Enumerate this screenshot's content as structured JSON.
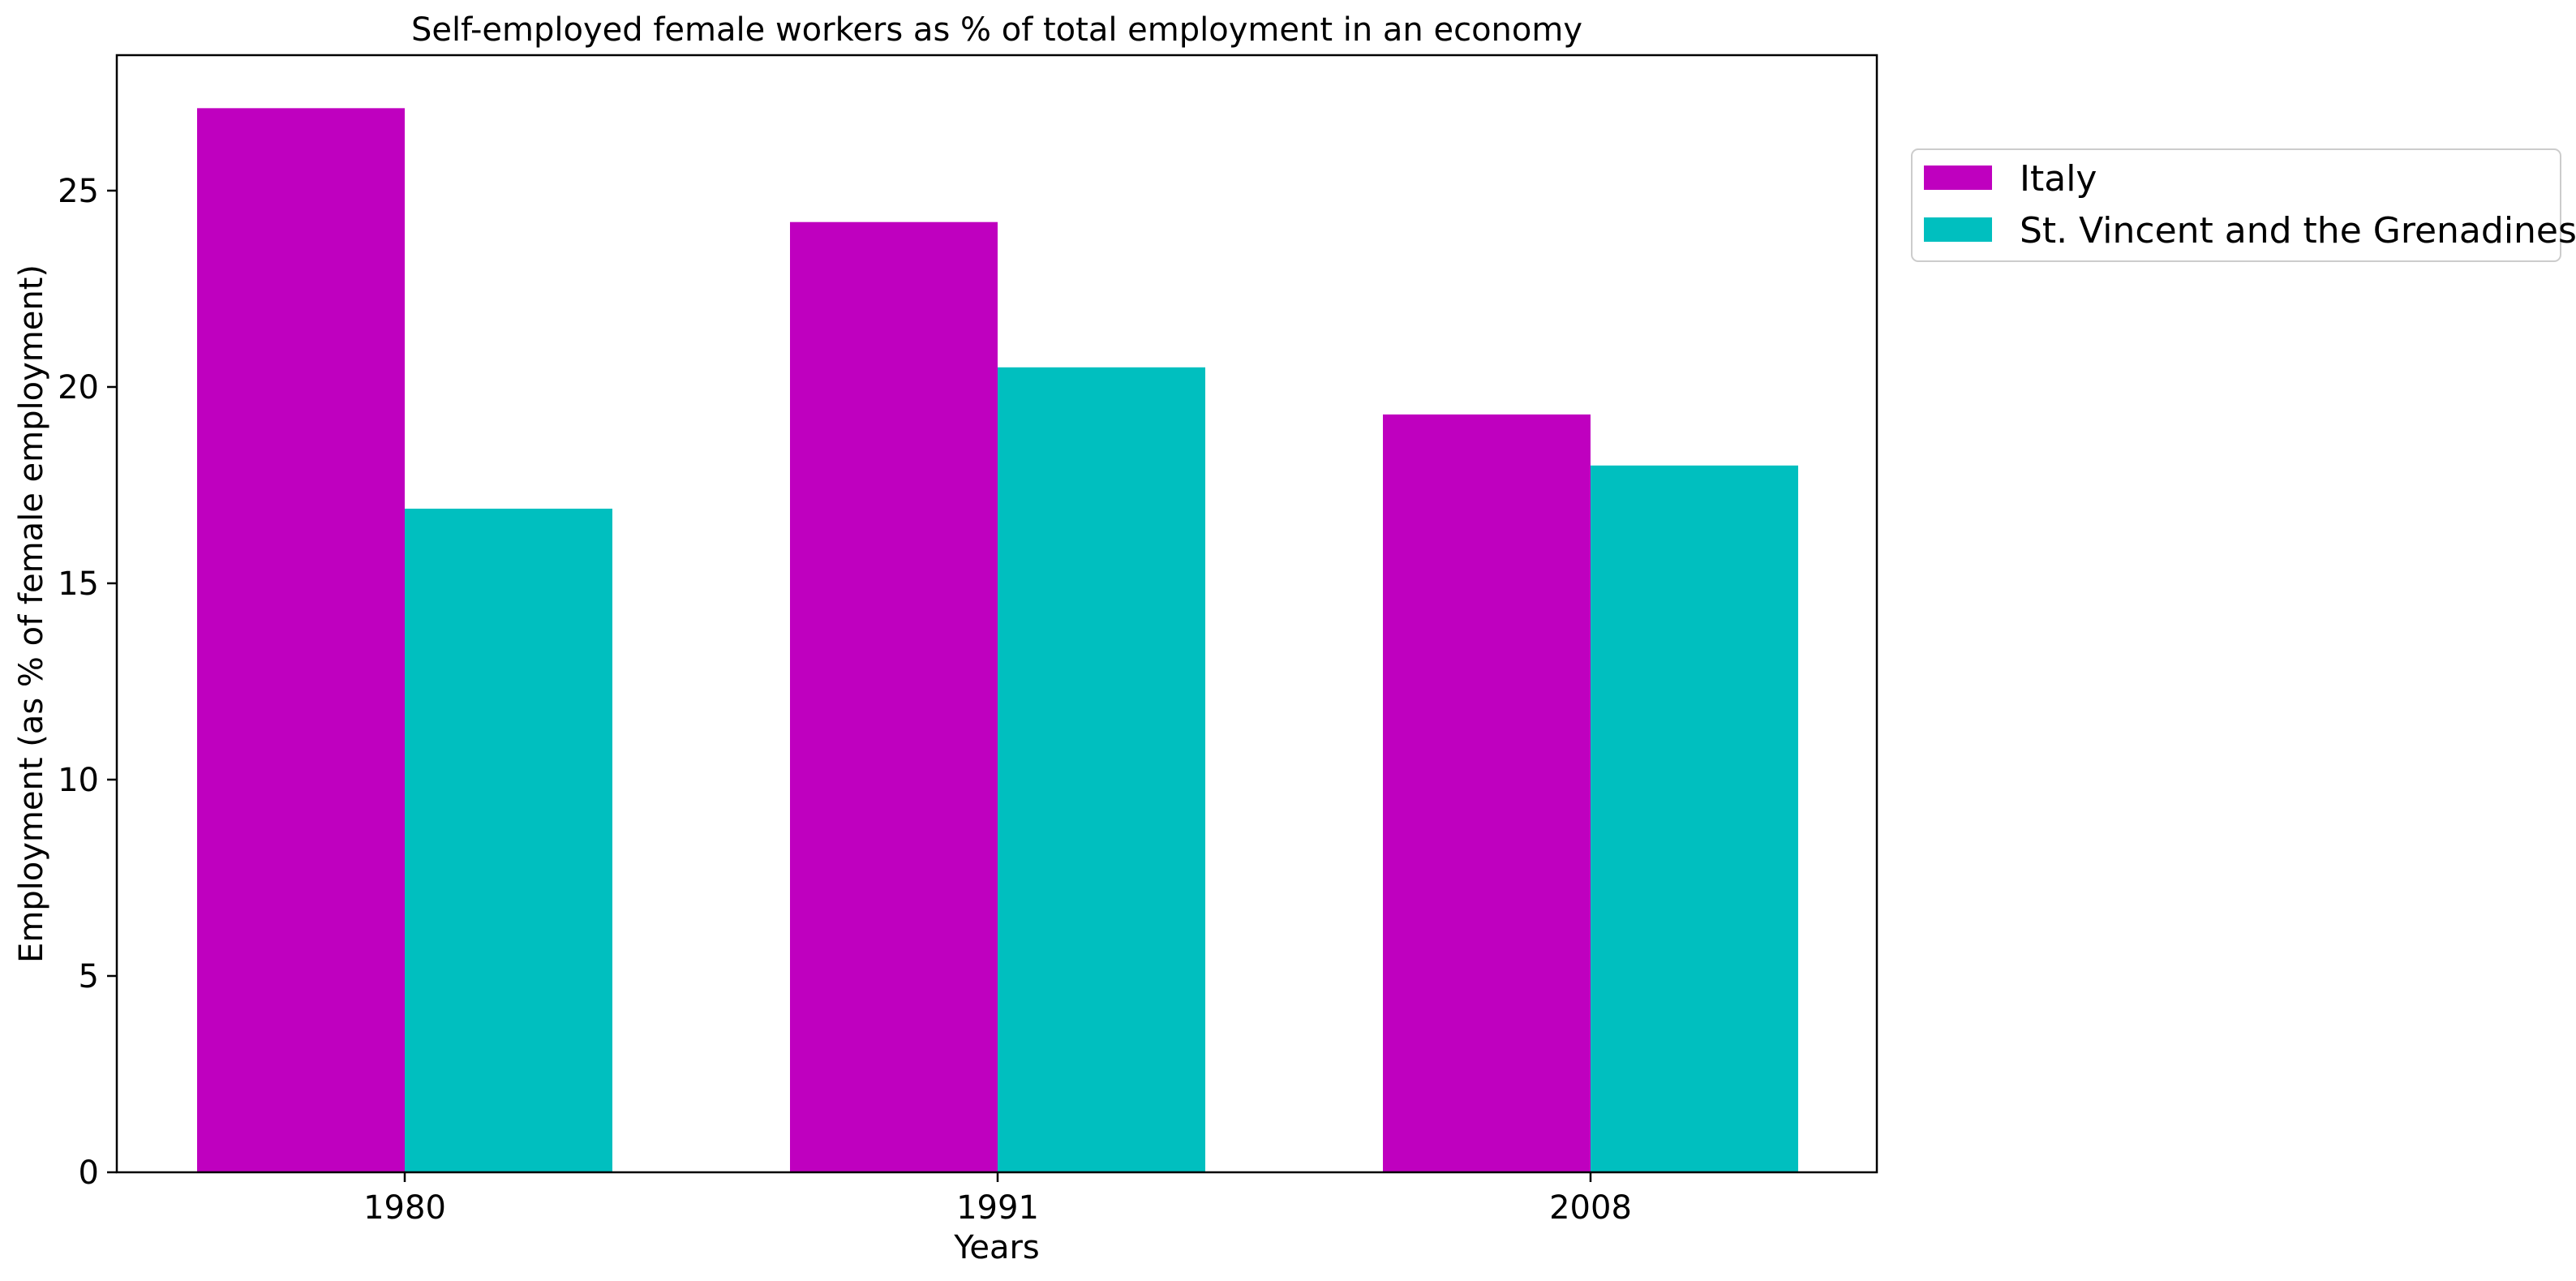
{
  "chart_data": {
    "type": "bar",
    "title": "Self-employed female workers as % of total employment in an economy",
    "xlabel": "Years",
    "ylabel": "Employment (as % of female employment)",
    "categories": [
      "1980",
      "1991",
      "2008"
    ],
    "series": [
      {
        "name": "Italy",
        "color": "#bf00bf",
        "values": [
          27.1,
          24.2,
          19.3
        ]
      },
      {
        "name": "St. Vincent and the Grenadines",
        "color": "#00bfbf",
        "values": [
          16.9,
          20.5,
          18.0
        ]
      }
    ],
    "yticks": [
      0,
      5,
      10,
      15,
      20,
      25
    ],
    "ylim": [
      0,
      28.45
    ],
    "grid": false,
    "legend_position": "outside-upper-right"
  }
}
